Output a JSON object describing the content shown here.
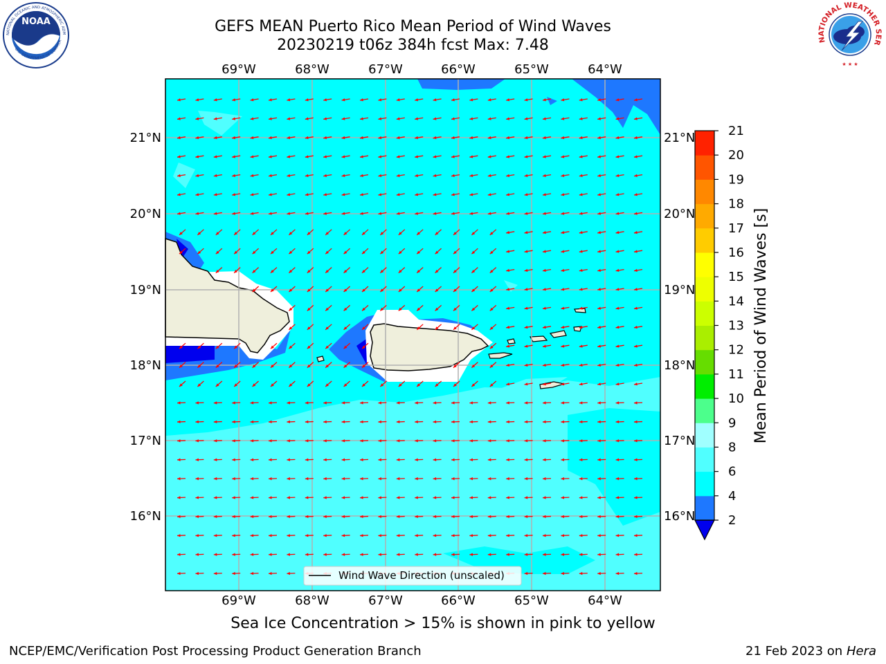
{
  "title_line1": "GEFS MEAN Puerto Rico Mean Period of Wind Waves",
  "title_line2": "20230219 t06z 384h fcst   Max: 7.48",
  "map": {
    "lon_ticks": [
      "69°W",
      "68°W",
      "67°W",
      "66°W",
      "65°W",
      "64°W"
    ],
    "lat_ticks": [
      "21°N",
      "20°N",
      "19°N",
      "18°N",
      "17°N",
      "16°N"
    ],
    "legend_label": "Wind Wave Direction (unscaled)",
    "arrow_color": "#ff0000",
    "land_color": "#efefdc",
    "grid": true
  },
  "colorbar": {
    "label": "Mean Period of Wind Waves [s]",
    "ticks": [
      "2",
      "4",
      "6",
      "8",
      "9",
      "10",
      "11",
      "12",
      "13",
      "14",
      "15",
      "16",
      "17",
      "18",
      "19",
      "20",
      "21"
    ],
    "colors": [
      "#0000ee",
      "#1e78ff",
      "#00ffff",
      "#50ffff",
      "#a0ffff",
      "#4cff8c",
      "#00ee00",
      "#66dd00",
      "#aaee00",
      "#ccff00",
      "#eeff00",
      "#ffff00",
      "#ffcc00",
      "#ffaa00",
      "#ff8800",
      "#ff5500",
      "#ff2200",
      "#ff0000"
    ]
  },
  "logos": {
    "left": "NOAA",
    "left_ring": "NATIONAL OCEANIC AND ATMOSPHERIC ADMINISTRATION",
    "left_ring_bottom": "U.S. DEPARTMENT OF COMMERCE",
    "right": "NATIONAL WEATHER SERVICE"
  },
  "note": "Sea Ice Concentration > 15% is shown in pink to yellow",
  "footer_left": "NCEP/EMC/Verification Post Processing Product Generation Branch",
  "footer_date": "21 Feb 2023 on",
  "footer_machine": "Hera"
}
